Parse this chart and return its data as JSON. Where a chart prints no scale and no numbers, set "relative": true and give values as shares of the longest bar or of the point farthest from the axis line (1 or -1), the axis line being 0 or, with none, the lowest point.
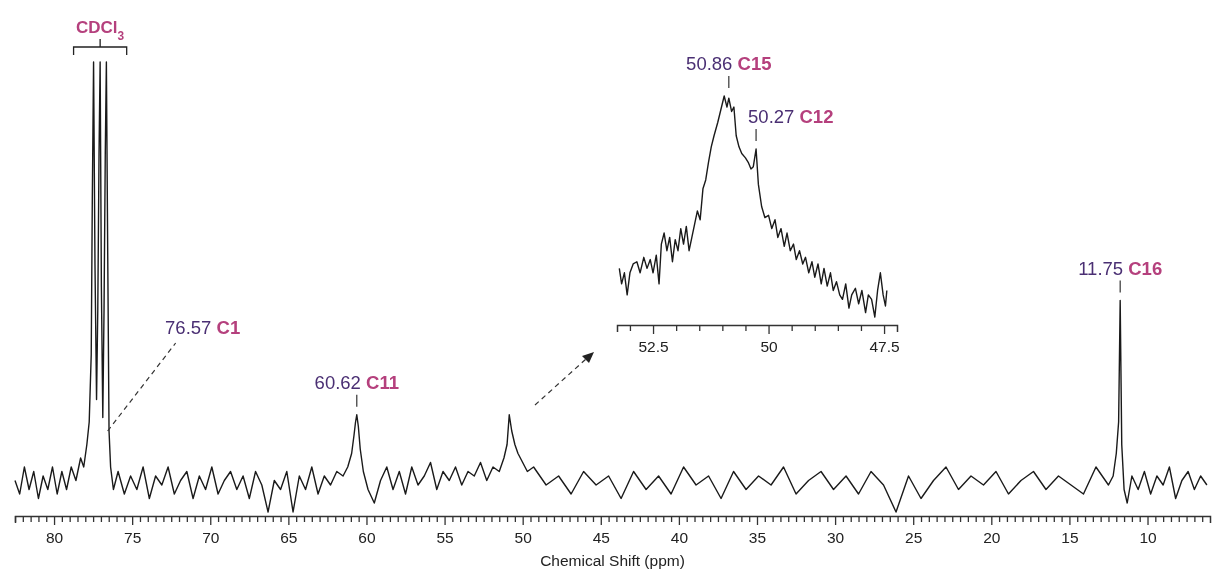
{
  "chart_data": [
    {
      "type": "line",
      "relative": true,
      "tick_labels": "x",
      "xlabel": "Chemical Shift (ppm)",
      "xlim": [
        82.5,
        6
      ],
      "xticks": [
        {
          "value": 82.5,
          "label": null
        },
        {
          "value": 82,
          "label": null
        },
        {
          "value": 81.5,
          "label": null
        },
        {
          "value": 81,
          "label": null
        },
        {
          "value": 80.5,
          "label": null
        },
        80,
        {
          "value": 79.5,
          "label": null
        },
        {
          "value": 79,
          "label": null
        },
        {
          "value": 78.5,
          "label": null
        },
        {
          "value": 78,
          "label": null
        },
        {
          "value": 77.5,
          "label": null
        },
        {
          "value": 77,
          "label": null
        },
        {
          "value": 76.5,
          "label": null
        },
        {
          "value": 76,
          "label": null
        },
        {
          "value": 75.5,
          "label": null
        },
        75,
        {
          "value": 74.5,
          "label": null
        },
        {
          "value": 74,
          "label": null
        },
        {
          "value": 73.5,
          "label": null
        },
        {
          "value": 73,
          "label": null
        },
        {
          "value": 72.5,
          "label": null
        },
        {
          "value": 72,
          "label": null
        },
        {
          "value": 71.5,
          "label": null
        },
        {
          "value": 71,
          "label": null
        },
        {
          "value": 70.5,
          "label": null
        },
        70,
        {
          "value": 69.5,
          "label": null
        },
        {
          "value": 69,
          "label": null
        },
        {
          "value": 68.5,
          "label": null
        },
        {
          "value": 68,
          "label": null
        },
        {
          "value": 67.5,
          "label": null
        },
        {
          "value": 67,
          "label": null
        },
        {
          "value": 66.5,
          "label": null
        },
        {
          "value": 66,
          "label": null
        },
        {
          "value": 65.5,
          "label": null
        },
        65,
        {
          "value": 64.5,
          "label": null
        },
        {
          "value": 64,
          "label": null
        },
        {
          "value": 63.5,
          "label": null
        },
        {
          "value": 63,
          "label": null
        },
        {
          "value": 62.5,
          "label": null
        },
        {
          "value": 62,
          "label": null
        },
        {
          "value": 61.5,
          "label": null
        },
        {
          "value": 61,
          "label": null
        },
        {
          "value": 60.5,
          "label": null
        },
        60,
        {
          "value": 59.5,
          "label": null
        },
        {
          "value": 59,
          "label": null
        },
        {
          "value": 58.5,
          "label": null
        },
        {
          "value": 58,
          "label": null
        },
        {
          "value": 57.5,
          "label": null
        },
        {
          "value": 57,
          "label": null
        },
        {
          "value": 56.5,
          "label": null
        },
        {
          "value": 56,
          "label": null
        },
        {
          "value": 55.5,
          "label": null
        },
        55,
        {
          "value": 54.5,
          "label": null
        },
        {
          "value": 54,
          "label": null
        },
        {
          "value": 53.5,
          "label": null
        },
        {
          "value": 53,
          "label": null
        },
        {
          "value": 52.5,
          "label": null
        },
        {
          "value": 52,
          "label": null
        },
        {
          "value": 51.5,
          "label": null
        },
        {
          "value": 51,
          "label": null
        },
        {
          "value": 50.5,
          "label": null
        },
        50,
        {
          "value": 49.5,
          "label": null
        },
        {
          "value": 49,
          "label": null
        },
        {
          "value": 48.5,
          "label": null
        },
        {
          "value": 48,
          "label": null
        },
        {
          "value": 47.5,
          "label": null
        },
        {
          "value": 47,
          "label": null
        },
        {
          "value": 46.5,
          "label": null
        },
        {
          "value": 46,
          "label": null
        },
        {
          "value": 45.5,
          "label": null
        },
        45,
        {
          "value": 44.5,
          "label": null
        },
        {
          "value": 44,
          "label": null
        },
        {
          "value": 43.5,
          "label": null
        },
        {
          "value": 43,
          "label": null
        },
        {
          "value": 42.5,
          "label": null
        },
        {
          "value": 42,
          "label": null
        },
        {
          "value": 41.5,
          "label": null
        },
        {
          "value": 41,
          "label": null
        },
        {
          "value": 40.5,
          "label": null
        },
        40,
        {
          "value": 39.5,
          "label": null
        },
        {
          "value": 39,
          "label": null
        },
        {
          "value": 38.5,
          "label": null
        },
        {
          "value": 38,
          "label": null
        },
        {
          "value": 37.5,
          "label": null
        },
        {
          "value": 37,
          "label": null
        },
        {
          "value": 36.5,
          "label": null
        },
        {
          "value": 36,
          "label": null
        },
        {
          "value": 35.5,
          "label": null
        },
        35,
        {
          "value": 34.5,
          "label": null
        },
        {
          "value": 34,
          "label": null
        },
        {
          "value": 33.5,
          "label": null
        },
        {
          "value": 33,
          "label": null
        },
        {
          "value": 32.5,
          "label": null
        },
        {
          "value": 32,
          "label": null
        },
        {
          "value": 31.5,
          "label": null
        },
        {
          "value": 31,
          "label": null
        },
        {
          "value": 30.5,
          "label": null
        },
        30,
        {
          "value": 29.5,
          "label": null
        },
        {
          "value": 29,
          "label": null
        },
        {
          "value": 28.5,
          "label": null
        },
        {
          "value": 28,
          "label": null
        },
        {
          "value": 27.5,
          "label": null
        },
        {
          "value": 27,
          "label": null
        },
        {
          "value": 26.5,
          "label": null
        },
        {
          "value": 26,
          "label": null
        },
        {
          "value": 25.5,
          "label": null
        },
        25,
        {
          "value": 24.5,
          "label": null
        },
        {
          "value": 24,
          "label": null
        },
        {
          "value": 23.5,
          "label": null
        },
        {
          "value": 23,
          "label": null
        },
        {
          "value": 22.5,
          "label": null
        },
        {
          "value": 22,
          "label": null
        },
        {
          "value": 21.5,
          "label": null
        },
        {
          "value": 21,
          "label": null
        },
        {
          "value": 20.5,
          "label": null
        },
        20,
        {
          "value": 19.5,
          "label": null
        },
        {
          "value": 19,
          "label": null
        },
        {
          "value": 18.5,
          "label": null
        },
        {
          "value": 18,
          "label": null
        },
        {
          "value": 17.5,
          "label": null
        },
        {
          "value": 17,
          "label": null
        },
        {
          "value": 16.5,
          "label": null
        },
        {
          "value": 16,
          "label": null
        },
        {
          "value": 15.5,
          "label": null
        },
        15,
        {
          "value": 14.5,
          "label": null
        },
        {
          "value": 14,
          "label": null
        },
        {
          "value": 13.5,
          "label": null
        },
        {
          "value": 13,
          "label": null
        },
        {
          "value": 12.5,
          "label": null
        },
        {
          "value": 12,
          "label": null
        },
        {
          "value": 11.5,
          "label": null
        },
        {
          "value": 11,
          "label": null
        },
        {
          "value": 10.5,
          "label": null
        },
        10,
        {
          "value": 9.5,
          "label": null
        },
        {
          "value": 9,
          "label": null
        },
        {
          "value": 8.5,
          "label": null
        },
        {
          "value": 8,
          "label": null
        },
        {
          "value": 7.5,
          "label": null
        },
        {
          "value": 7,
          "label": null
        },
        {
          "value": 6.5,
          "label": null
        }
      ],
      "series": [
        {
          "color": "#1a1a1a",
          "x": [
            82.5,
            82.2,
            81.9,
            81.6,
            81.3,
            81.0,
            80.7,
            80.4,
            80.1,
            79.8,
            79.5,
            79.2,
            78.9,
            78.6,
            78.3,
            78.1,
            77.9,
            77.75,
            77.62,
            77.55,
            77.47,
            77.38,
            77.28,
            77.2,
            77.12,
            77.05,
            76.97,
            76.88,
            76.8,
            76.72,
            76.65,
            76.57,
            76.48,
            76.38,
            76.2,
            75.9,
            75.5,
            75.1,
            74.7,
            74.3,
            73.9,
            73.5,
            73.1,
            72.7,
            72.3,
            71.9,
            71.5,
            71.1,
            70.7,
            70.3,
            69.9,
            69.5,
            69.1,
            68.7,
            68.3,
            67.9,
            67.5,
            67.1,
            66.7,
            66.3,
            65.9,
            65.5,
            65.1,
            64.7,
            64.3,
            63.9,
            63.5,
            63.1,
            62.7,
            62.3,
            61.9,
            61.5,
            61.2,
            60.95,
            60.8,
            60.7,
            60.62,
            60.52,
            60.4,
            60.2,
            59.9,
            59.5,
            59.1,
            58.7,
            58.3,
            57.9,
            57.5,
            57.1,
            56.7,
            56.3,
            55.9,
            55.5,
            55.1,
            54.7,
            54.3,
            53.9,
            53.5,
            53.1,
            52.7,
            52.3,
            51.9,
            51.5,
            51.2,
            51.0,
            50.86,
            50.7,
            50.5,
            50.3,
            50.0,
            49.7,
            49.3,
            48.5,
            47.7,
            46.9,
            46.1,
            45.3,
            44.5,
            43.7,
            42.9,
            42.1,
            41.3,
            40.5,
            39.7,
            38.9,
            38.1,
            37.3,
            36.5,
            35.7,
            34.9,
            34.1,
            33.3,
            32.5,
            31.7,
            30.9,
            30.1,
            29.3,
            28.5,
            27.7,
            26.9,
            26.1,
            25.3,
            24.5,
            23.7,
            22.9,
            22.1,
            21.3,
            20.5,
            19.7,
            18.9,
            18.1,
            17.3,
            16.5,
            15.7,
            14.9,
            14.1,
            13.3,
            12.5,
            12.2,
            12.0,
            11.85,
            11.75,
            11.65,
            11.5,
            11.3,
            11.0,
            10.6,
            10.2,
            9.8,
            9.4,
            9.0,
            8.6,
            8.2,
            7.8,
            7.4,
            7.0,
            6.6,
            6.2
          ],
          "values": [
            0.07,
            0.04,
            0.1,
            0.05,
            0.09,
            0.03,
            0.08,
            0.05,
            0.1,
            0.04,
            0.09,
            0.05,
            0.1,
            0.07,
            0.12,
            0.1,
            0.15,
            0.2,
            0.35,
            0.7,
            1,
            0.55,
            0.25,
            0.45,
            0.8,
            1,
            0.5,
            0.21,
            0.45,
            0.8,
            1,
            0.6,
            0.18,
            0.1,
            0.05,
            0.09,
            0.04,
            0.08,
            0.05,
            0.1,
            0.03,
            0.08,
            0.06,
            0.1,
            0.04,
            0.07,
            0.09,
            0.03,
            0.08,
            0.05,
            0.1,
            0.04,
            0.07,
            0.09,
            0.05,
            0.08,
            0.03,
            0.09,
            0.06,
            0.0,
            0.07,
            0.05,
            0.09,
            0.0,
            0.08,
            0.05,
            0.1,
            0.04,
            0.08,
            0.06,
            0.09,
            0.08,
            0.1,
            0.13,
            0.17,
            0.2,
            0.216,
            0.19,
            0.14,
            0.09,
            0.05,
            0.02,
            0.07,
            0.1,
            0.05,
            0.09,
            0.04,
            0.1,
            0.06,
            0.08,
            0.11,
            0.05,
            0.09,
            0.07,
            0.1,
            0.06,
            0.09,
            0.08,
            0.11,
            0.07,
            0.1,
            0.09,
            0.12,
            0.15,
            0.216,
            0.18,
            0.15,
            0.13,
            0.11,
            0.09,
            0.1,
            0.06,
            0.08,
            0.04,
            0.09,
            0.06,
            0.08,
            0.03,
            0.09,
            0.05,
            0.08,
            0.04,
            0.1,
            0.06,
            0.08,
            0.03,
            0.09,
            0.05,
            0.08,
            0.06,
            0.1,
            0.04,
            0.07,
            0.09,
            0.05,
            0.08,
            0.04,
            0.09,
            0.06,
            0.0,
            0.08,
            0.03,
            0.07,
            0.1,
            0.05,
            0.08,
            0.06,
            0.09,
            0.04,
            0.07,
            0.09,
            0.05,
            0.08,
            0.06,
            0.04,
            0.1,
            0.06,
            0.08,
            0.13,
            0.2,
            0.47,
            0.15,
            0.05,
            0.02,
            0.08,
            0.05,
            0.09,
            0.04,
            0.08,
            0.06,
            0.1,
            0.03,
            0.07,
            0.09,
            0.05,
            0.08,
            0.06
          ]
        }
      ],
      "annotations": [
        {
          "text": "CDCl$_{3}$",
          "x": 77.05,
          "y": 1
        },
        {
          "text": "76.57 C1",
          "x": 76.57,
          "y": 0.18
        },
        {
          "text": "60.62 C11",
          "x": 60.62,
          "y": 0.216
        },
        {
          "text": "11.75 C16",
          "x": 11.75,
          "y": 0.47
        }
      ]
    },
    {
      "type": "line",
      "relative": true,
      "tick_labels": "x",
      "xlim": [
        53.28,
        47.22
      ],
      "xticks": [
        {
          "value": 53,
          "label": null
        },
        52.5,
        {
          "value": 52,
          "label": null
        },
        {
          "value": 51.5,
          "label": null
        },
        {
          "value": 51,
          "label": null
        },
        {
          "value": 50.5,
          "label": null
        },
        50,
        {
          "value": 49.5,
          "label": null
        },
        {
          "value": 49,
          "label": null
        },
        {
          "value": 48.5,
          "label": null
        },
        {
          "value": 48,
          "label": null
        },
        47.5
      ],
      "series": [
        {
          "color": "#1a1a1a",
          "x": [
            53.23,
            53.18,
            53.12,
            53.06,
            53.0,
            52.93,
            52.85,
            52.78,
            52.7,
            52.63,
            52.56,
            52.5,
            52.43,
            52.37,
            52.32,
            52.26,
            52.2,
            52.14,
            52.08,
            52.02,
            51.96,
            51.9,
            51.84,
            51.78,
            51.72,
            51.66,
            51.6,
            51.54,
            51.48,
            51.42,
            51.36,
            51.3,
            51.24,
            51.18,
            51.1,
            51.03,
            50.96,
            50.9,
            50.86,
            50.8,
            50.75,
            50.7,
            50.64,
            50.58,
            50.5,
            50.44,
            50.38,
            50.33,
            50.27,
            50.22,
            50.15,
            50.08,
            50.0,
            49.93,
            49.86,
            49.8,
            49.73,
            49.66,
            49.6,
            49.53,
            49.46,
            49.4,
            49.33,
            49.26,
            49.2,
            49.13,
            49.06,
            49.0,
            48.93,
            48.86,
            48.8,
            48.73,
            48.66,
            48.6,
            48.53,
            48.46,
            48.4,
            48.33,
            48.26,
            48.2,
            48.12,
            48.05,
            47.98,
            47.9,
            47.84,
            47.77,
            47.7,
            47.64,
            47.58,
            47.52,
            47.47,
            47.44
          ],
          "values": [
            0.22,
            0.15,
            0.2,
            0.1,
            0.2,
            0.24,
            0.25,
            0.2,
            0.27,
            0.22,
            0.26,
            0.2,
            0.28,
            0.15,
            0.33,
            0.38,
            0.3,
            0.36,
            0.25,
            0.35,
            0.3,
            0.4,
            0.33,
            0.41,
            0.3,
            0.36,
            0.42,
            0.48,
            0.44,
            0.58,
            0.62,
            0.7,
            0.77,
            0.82,
            0.88,
            0.94,
            1.0,
            0.95,
            0.99,
            0.93,
            0.95,
            0.82,
            0.77,
            0.74,
            0.72,
            0.7,
            0.67,
            0.68,
            0.76,
            0.6,
            0.5,
            0.45,
            0.46,
            0.4,
            0.44,
            0.36,
            0.4,
            0.32,
            0.38,
            0.3,
            0.33,
            0.26,
            0.3,
            0.24,
            0.27,
            0.2,
            0.25,
            0.18,
            0.24,
            0.15,
            0.22,
            0.14,
            0.2,
            0.12,
            0.16,
            0.1,
            0.08,
            0.15,
            0.04,
            0.1,
            0.13,
            0.06,
            0.12,
            0.02,
            0.1,
            0.08,
            0.0,
            0.12,
            0.2,
            0.1,
            0.05,
            0.12
          ]
        }
      ],
      "annotations": [
        {
          "text": "50.86 C15",
          "x": 50.86,
          "y": 1
        },
        {
          "text": "50.27 C12",
          "x": 50.27,
          "y": 0.76
        }
      ]
    }
  ]
}
